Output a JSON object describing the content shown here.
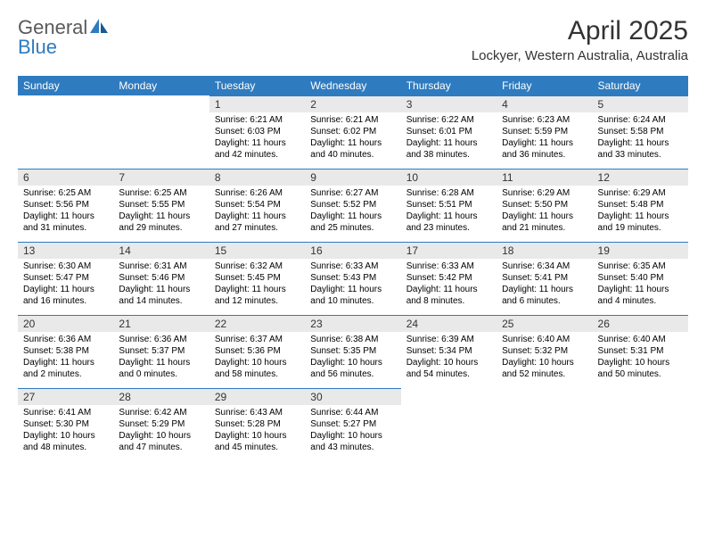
{
  "logo": {
    "textA": "General",
    "textB": "Blue"
  },
  "title": "April 2025",
  "location": "Lockyer, Western Australia, Australia",
  "colors": {
    "header_bg": "#2f7bbf",
    "header_text": "#ffffff",
    "daynum_bg": "#e9e9e9",
    "border": "#2f7bbf",
    "text": "#000000",
    "title_text": "#333333"
  },
  "day_headers": [
    "Sunday",
    "Monday",
    "Tuesday",
    "Wednesday",
    "Thursday",
    "Friday",
    "Saturday"
  ],
  "weeks": [
    [
      null,
      null,
      {
        "n": "1",
        "sr": "Sunrise: 6:21 AM",
        "ss": "Sunset: 6:03 PM",
        "dl": "Daylight: 11 hours and 42 minutes."
      },
      {
        "n": "2",
        "sr": "Sunrise: 6:21 AM",
        "ss": "Sunset: 6:02 PM",
        "dl": "Daylight: 11 hours and 40 minutes."
      },
      {
        "n": "3",
        "sr": "Sunrise: 6:22 AM",
        "ss": "Sunset: 6:01 PM",
        "dl": "Daylight: 11 hours and 38 minutes."
      },
      {
        "n": "4",
        "sr": "Sunrise: 6:23 AM",
        "ss": "Sunset: 5:59 PM",
        "dl": "Daylight: 11 hours and 36 minutes."
      },
      {
        "n": "5",
        "sr": "Sunrise: 6:24 AM",
        "ss": "Sunset: 5:58 PM",
        "dl": "Daylight: 11 hours and 33 minutes."
      }
    ],
    [
      {
        "n": "6",
        "sr": "Sunrise: 6:25 AM",
        "ss": "Sunset: 5:56 PM",
        "dl": "Daylight: 11 hours and 31 minutes."
      },
      {
        "n": "7",
        "sr": "Sunrise: 6:25 AM",
        "ss": "Sunset: 5:55 PM",
        "dl": "Daylight: 11 hours and 29 minutes."
      },
      {
        "n": "8",
        "sr": "Sunrise: 6:26 AM",
        "ss": "Sunset: 5:54 PM",
        "dl": "Daylight: 11 hours and 27 minutes."
      },
      {
        "n": "9",
        "sr": "Sunrise: 6:27 AM",
        "ss": "Sunset: 5:52 PM",
        "dl": "Daylight: 11 hours and 25 minutes."
      },
      {
        "n": "10",
        "sr": "Sunrise: 6:28 AM",
        "ss": "Sunset: 5:51 PM",
        "dl": "Daylight: 11 hours and 23 minutes."
      },
      {
        "n": "11",
        "sr": "Sunrise: 6:29 AM",
        "ss": "Sunset: 5:50 PM",
        "dl": "Daylight: 11 hours and 21 minutes."
      },
      {
        "n": "12",
        "sr": "Sunrise: 6:29 AM",
        "ss": "Sunset: 5:48 PM",
        "dl": "Daylight: 11 hours and 19 minutes."
      }
    ],
    [
      {
        "n": "13",
        "sr": "Sunrise: 6:30 AM",
        "ss": "Sunset: 5:47 PM",
        "dl": "Daylight: 11 hours and 16 minutes."
      },
      {
        "n": "14",
        "sr": "Sunrise: 6:31 AM",
        "ss": "Sunset: 5:46 PM",
        "dl": "Daylight: 11 hours and 14 minutes."
      },
      {
        "n": "15",
        "sr": "Sunrise: 6:32 AM",
        "ss": "Sunset: 5:45 PM",
        "dl": "Daylight: 11 hours and 12 minutes."
      },
      {
        "n": "16",
        "sr": "Sunrise: 6:33 AM",
        "ss": "Sunset: 5:43 PM",
        "dl": "Daylight: 11 hours and 10 minutes."
      },
      {
        "n": "17",
        "sr": "Sunrise: 6:33 AM",
        "ss": "Sunset: 5:42 PM",
        "dl": "Daylight: 11 hours and 8 minutes."
      },
      {
        "n": "18",
        "sr": "Sunrise: 6:34 AM",
        "ss": "Sunset: 5:41 PM",
        "dl": "Daylight: 11 hours and 6 minutes."
      },
      {
        "n": "19",
        "sr": "Sunrise: 6:35 AM",
        "ss": "Sunset: 5:40 PM",
        "dl": "Daylight: 11 hours and 4 minutes."
      }
    ],
    [
      {
        "n": "20",
        "sr": "Sunrise: 6:36 AM",
        "ss": "Sunset: 5:38 PM",
        "dl": "Daylight: 11 hours and 2 minutes."
      },
      {
        "n": "21",
        "sr": "Sunrise: 6:36 AM",
        "ss": "Sunset: 5:37 PM",
        "dl": "Daylight: 11 hours and 0 minutes."
      },
      {
        "n": "22",
        "sr": "Sunrise: 6:37 AM",
        "ss": "Sunset: 5:36 PM",
        "dl": "Daylight: 10 hours and 58 minutes."
      },
      {
        "n": "23",
        "sr": "Sunrise: 6:38 AM",
        "ss": "Sunset: 5:35 PM",
        "dl": "Daylight: 10 hours and 56 minutes."
      },
      {
        "n": "24",
        "sr": "Sunrise: 6:39 AM",
        "ss": "Sunset: 5:34 PM",
        "dl": "Daylight: 10 hours and 54 minutes."
      },
      {
        "n": "25",
        "sr": "Sunrise: 6:40 AM",
        "ss": "Sunset: 5:32 PM",
        "dl": "Daylight: 10 hours and 52 minutes."
      },
      {
        "n": "26",
        "sr": "Sunrise: 6:40 AM",
        "ss": "Sunset: 5:31 PM",
        "dl": "Daylight: 10 hours and 50 minutes."
      }
    ],
    [
      {
        "n": "27",
        "sr": "Sunrise: 6:41 AM",
        "ss": "Sunset: 5:30 PM",
        "dl": "Daylight: 10 hours and 48 minutes."
      },
      {
        "n": "28",
        "sr": "Sunrise: 6:42 AM",
        "ss": "Sunset: 5:29 PM",
        "dl": "Daylight: 10 hours and 47 minutes."
      },
      {
        "n": "29",
        "sr": "Sunrise: 6:43 AM",
        "ss": "Sunset: 5:28 PM",
        "dl": "Daylight: 10 hours and 45 minutes."
      },
      {
        "n": "30",
        "sr": "Sunrise: 6:44 AM",
        "ss": "Sunset: 5:27 PM",
        "dl": "Daylight: 10 hours and 43 minutes."
      },
      null,
      null,
      null
    ]
  ]
}
